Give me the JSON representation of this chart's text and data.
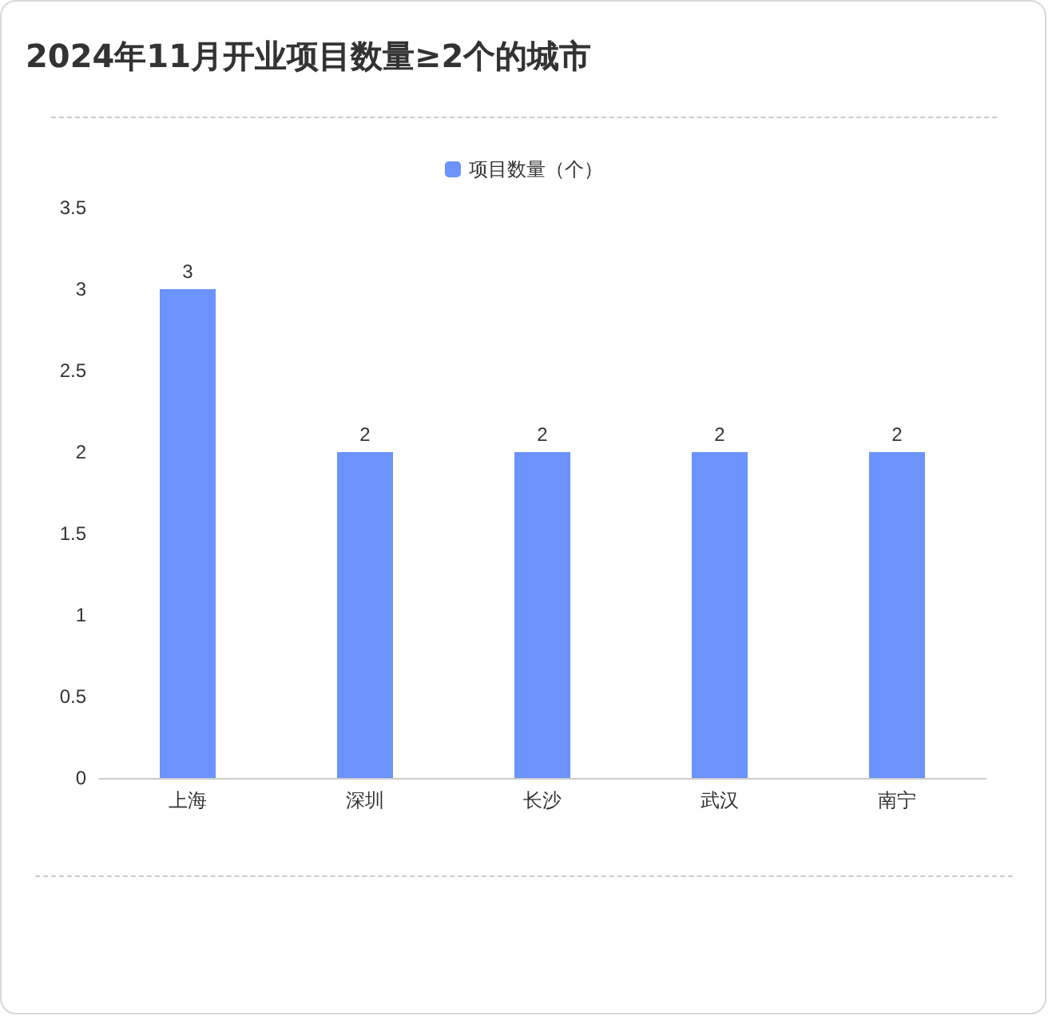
{
  "chart_data": {
    "type": "bar",
    "title": "2024年11月开业项目数量≥2个的城市",
    "categories": [
      "上海",
      "深圳",
      "长沙",
      "武汉",
      "南宁"
    ],
    "series": [
      {
        "name": "项目数量（个）",
        "color": "#6b93fb",
        "values": [
          3,
          2,
          2,
          2,
          2
        ]
      }
    ],
    "ylim": [
      0,
      3.5
    ],
    "yticks": [
      0,
      0.5,
      1,
      1.5,
      2,
      2.5,
      3,
      3.5
    ],
    "grid": false,
    "legend": "top",
    "data_labels": true
  }
}
